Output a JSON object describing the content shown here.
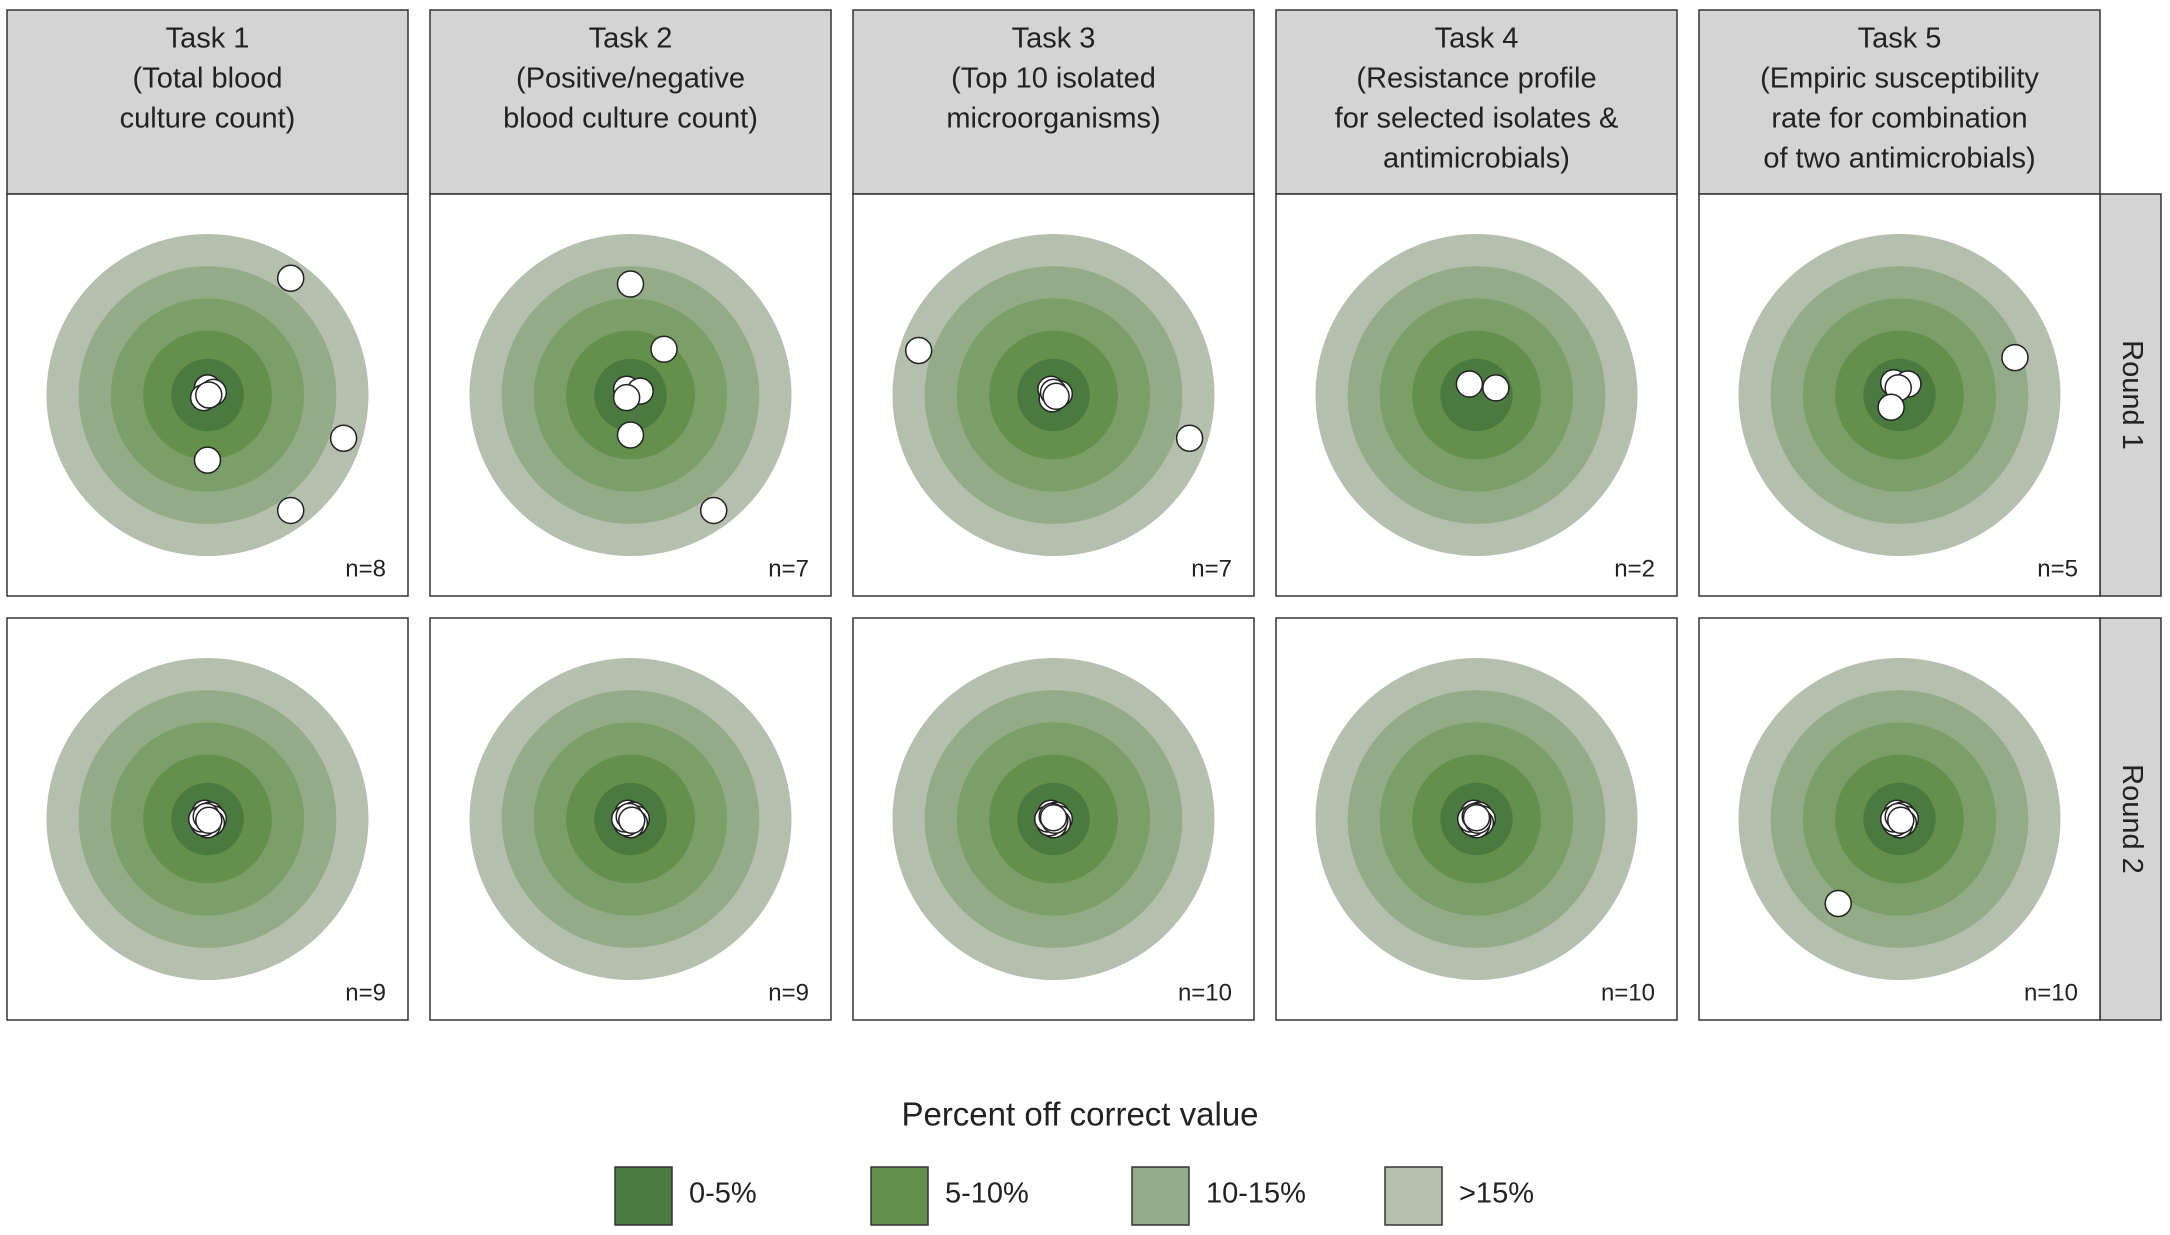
{
  "chart_data": {
    "type": "target",
    "columns": [
      [
        "Task 1",
        "(Total blood",
        "culture count)"
      ],
      [
        "Task 2",
        "(Positive/negative",
        "blood culture count)"
      ],
      [
        "Task 3",
        "(Top 10 isolated",
        "microorganisms)"
      ],
      [
        "Task 4",
        "(Resistance profile",
        "for selected isolates &",
        "antimicrobials)"
      ],
      [
        "Task 5",
        "(Empiric susceptibility",
        "rate for combination",
        "of two antimicrobials)"
      ]
    ],
    "rows": [
      {
        "label": "Round 1",
        "panels": [
          {
            "n": "n=8",
            "x": [
              12.9,
              0,
              0.9,
              -0.6,
              0.2,
              0,
              21.1,
              12.9
            ],
            "y": [
              18.1,
              1.1,
              0.4,
              -0.4,
              0,
              -10.1,
              -6.7,
              -17.9
            ]
          },
          {
            "n": "n=7",
            "x": [
              0,
              5.2,
              -0.6,
              1.5,
              -0.6,
              0,
              12.9
            ],
            "y": [
              17.2,
              7.1,
              0.9,
              0.6,
              -0.4,
              -6.2,
              -17.9
            ]
          },
          {
            "n": "n=7",
            "x": [
              -20.9,
              -0.4,
              0.9,
              -0.2,
              0,
              0.4,
              21.1
            ],
            "y": [
              6.9,
              0.9,
              0.2,
              -0.6,
              0.4,
              -0.2,
              -6.7
            ]
          },
          {
            "n": "n=2",
            "x": [
              -1.1,
              3.0
            ],
            "y": [
              1.7,
              1.1
            ]
          },
          {
            "n": "n=5",
            "x": [
              17.9,
              -0.9,
              1.3,
              -0.2,
              -1.3
            ],
            "y": [
              5.8,
              1.9,
              1.7,
              1.1,
              -1.9
            ]
          }
        ]
      },
      {
        "label": "Round 2",
        "panels": [
          {
            "n": "n=9",
            "x": [
              -0.4,
              0.4,
              0.9,
              0.6,
              0,
              -0.6,
              -0.9,
              -0.2,
              0.2
            ],
            "y": [
              0.9,
              0.6,
              0,
              -0.6,
              -0.9,
              -0.6,
              0,
              0.4,
              -0.2
            ]
          },
          {
            "n": "n=9",
            "x": [
              -0.4,
              0.4,
              0.9,
              0.6,
              0,
              -0.6,
              -0.9,
              -0.2,
              0.2
            ],
            "y": [
              0.9,
              0.6,
              0,
              -0.6,
              -0.9,
              -0.6,
              0,
              0.4,
              -0.2
            ]
          },
          {
            "n": "n=10",
            "x": [
              -0.4,
              0.4,
              0.9,
              0.6,
              0,
              -0.6,
              -0.9,
              -0.2,
              0.2,
              0
            ],
            "y": [
              0.9,
              0.6,
              0,
              -0.6,
              -0.9,
              -0.6,
              0,
              0.4,
              -0.2,
              0.2
            ]
          },
          {
            "n": "n=10",
            "x": [
              -0.4,
              0.4,
              0.9,
              0.6,
              0,
              -0.6,
              -0.9,
              -0.2,
              0.2,
              0
            ],
            "y": [
              0.9,
              0.6,
              0,
              -0.6,
              -0.9,
              -0.6,
              0,
              0.4,
              -0.2,
              0.2
            ]
          },
          {
            "n": "n=10",
            "x": [
              -0.4,
              0.4,
              0.9,
              0.6,
              0,
              -0.6,
              -0.9,
              -0.2,
              0.2,
              -9.5
            ],
            "y": [
              0.9,
              0.6,
              0,
              -0.6,
              -0.9,
              -0.6,
              0,
              0.4,
              -0.2,
              -13.1
            ]
          }
        ]
      }
    ],
    "legend_title": "Percent off correct value",
    "legend": [
      {
        "label": "0-5%",
        "color": "#4b7a40"
      },
      {
        "label": "5-10%",
        "color": "#64904c"
      },
      {
        "label": "10-15%",
        "color": "#93ab86"
      },
      {
        "label": ">15%",
        "color": "#b4bfae"
      }
    ]
  }
}
